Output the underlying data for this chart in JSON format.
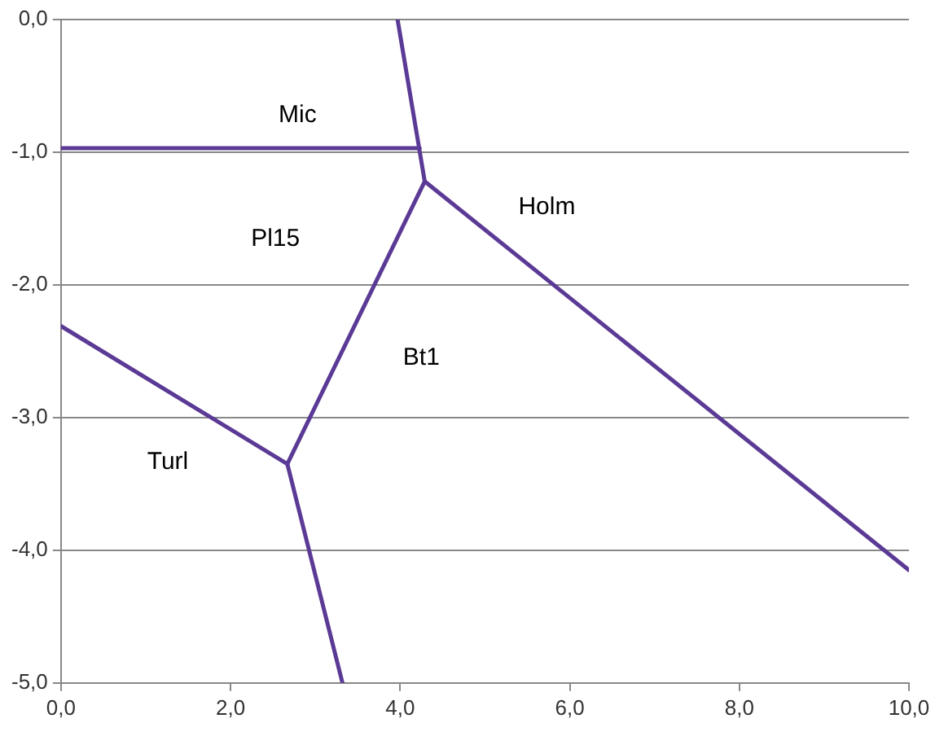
{
  "chart_data": {
    "type": "line",
    "xlim": [
      0,
      10
    ],
    "ylim": [
      -5,
      0
    ],
    "xticks": [
      {
        "value": 0,
        "label": "0,0"
      },
      {
        "value": 2,
        "label": "2,0"
      },
      {
        "value": 4,
        "label": "4,0"
      },
      {
        "value": 6,
        "label": "6,0"
      },
      {
        "value": 8,
        "label": "8,0"
      },
      {
        "value": 10,
        "label": "10,0"
      }
    ],
    "yticks": [
      {
        "value": -5,
        "label": "-5,0"
      },
      {
        "value": -4,
        "label": "-4,0"
      },
      {
        "value": -3,
        "label": "-3,0"
      },
      {
        "value": -2,
        "label": "-2,0"
      },
      {
        "value": -1,
        "label": "-1,0"
      },
      {
        "value": 0,
        "label": "0,0"
      }
    ],
    "grid": "y",
    "legend": false,
    "marker": "none",
    "line_style": "solid",
    "series": [
      {
        "color": "#5b3a96",
        "x": [
          0,
          4.23
        ],
        "values": [
          -0.97,
          -0.97
        ]
      },
      {
        "color": "#5b3a96",
        "x": [
          3.97,
          4.29
        ],
        "values": [
          0,
          -1.22
        ]
      },
      {
        "color": "#5b3a96",
        "x": [
          4.29,
          10
        ],
        "values": [
          -1.22,
          -4.15
        ]
      },
      {
        "color": "#5b3a96",
        "x": [
          4.29,
          2.67
        ],
        "values": [
          -1.22,
          -3.35
        ]
      },
      {
        "color": "#5b3a96",
        "x": [
          0,
          2.67
        ],
        "values": [
          -2.31,
          -3.35
        ]
      },
      {
        "color": "#5b3a96",
        "x": [
          2.67,
          3.32
        ],
        "values": [
          -3.35,
          -5
        ]
      }
    ],
    "annotations": [
      "Mic",
      "Pl15",
      "Holm",
      "Bt1",
      "Turl"
    ]
  }
}
